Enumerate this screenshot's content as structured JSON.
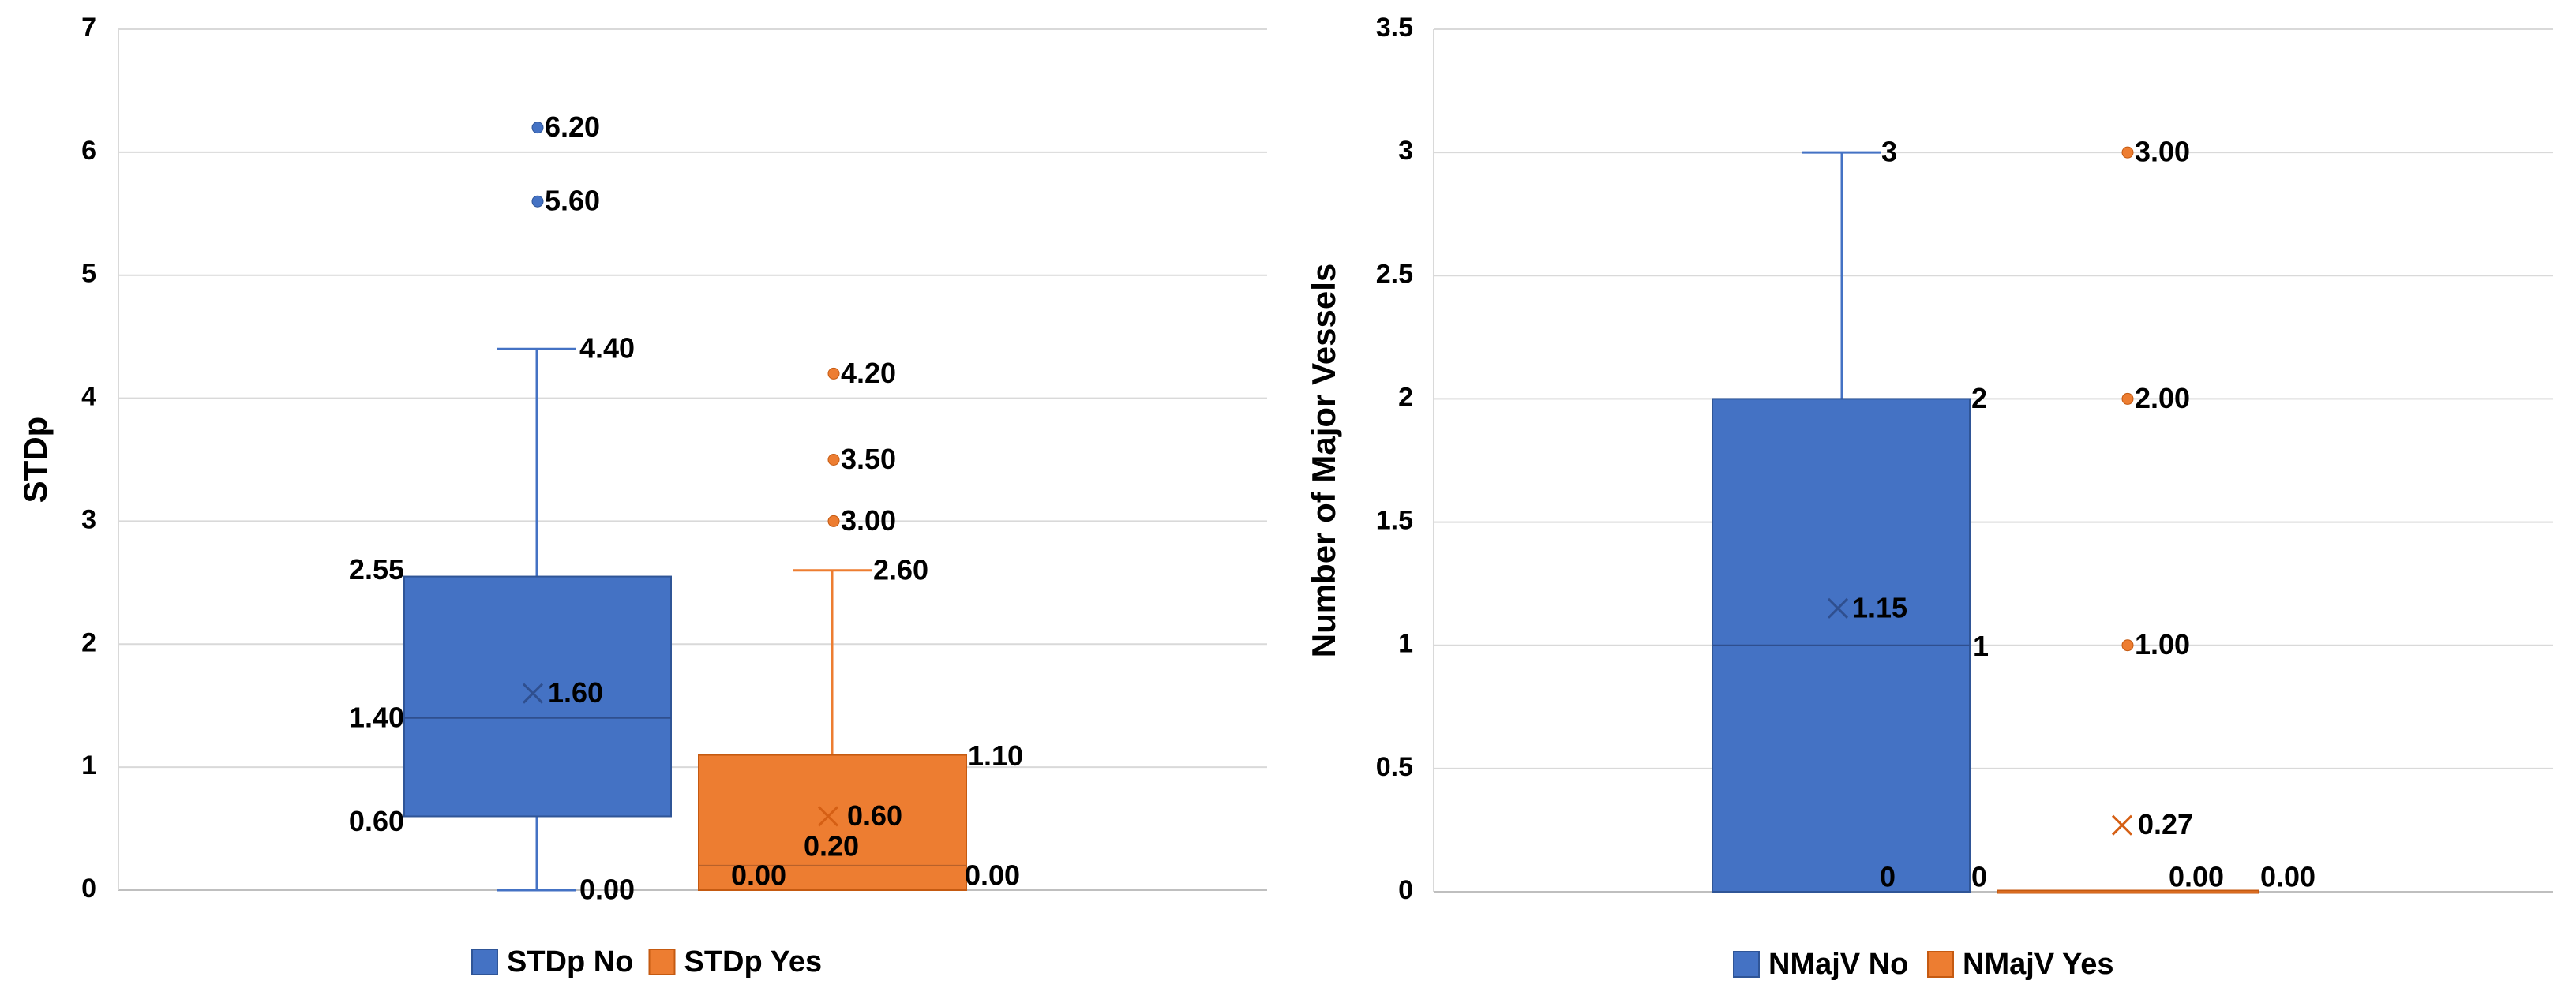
{
  "chart_data": [
    {
      "type": "box",
      "ylabel": "STDp",
      "ylim": [
        0,
        7
      ],
      "yticks": [
        "0",
        "1",
        "2",
        "3",
        "4",
        "5",
        "6",
        "7"
      ],
      "series": [
        {
          "name": "STDp No",
          "color": "#4472C4",
          "whisker_low": 0,
          "q1": 0.6,
          "median": 1.4,
          "q3": 2.55,
          "whisker_high": 4.4,
          "mean": 1.6,
          "outliers": [
            6.2,
            5.6
          ],
          "labels": {
            "whisker_low": "0.00",
            "q1": "0.60",
            "median": "1.40",
            "q3": "2.55",
            "whisker_high": "4.40",
            "mean": "1.60",
            "outliers": [
              "6.20",
              "5.60"
            ]
          }
        },
        {
          "name": "STDp Yes",
          "color": "#ED7D31",
          "whisker_low": 0,
          "q1": 0,
          "median": 0.2,
          "q3": 1.1,
          "whisker_high": 2.6,
          "mean": 0.6,
          "outliers": [
            4.2,
            3.5,
            3.0
          ],
          "labels": {
            "whisker_low": "0.00",
            "q1": "0.00",
            "median": "0.20",
            "q3": "1.10",
            "whisker_high": "2.60",
            "mean": "0.60",
            "outliers": [
              "4.20",
              "3.50",
              "3.00"
            ]
          }
        }
      ],
      "legend": [
        "STDp No",
        "STDp Yes"
      ]
    },
    {
      "type": "box",
      "ylabel": "Number of Major Vessels",
      "ylim": [
        0,
        3.5
      ],
      "yticks": [
        "0",
        "0.5",
        "1",
        "1.5",
        "2",
        "2.5",
        "3",
        "3.5"
      ],
      "series": [
        {
          "name": "NMajV No",
          "color": "#4472C4",
          "whisker_low": 0,
          "q1": 0,
          "median": 1,
          "q3": 2,
          "whisker_high": 3,
          "mean": 1.15,
          "outliers": [],
          "labels": {
            "whisker_low": "0",
            "q1": "0",
            "median": "1",
            "q3": "2",
            "whisker_high": "3",
            "mean": "1.15",
            "outliers": []
          }
        },
        {
          "name": "NMajV Yes",
          "color": "#ED7D31",
          "whisker_low": 0,
          "q1": 0,
          "median": 0,
          "q3": 0,
          "whisker_high": 0,
          "mean": 0.27,
          "outliers": [
            3.0,
            2.0,
            1.0
          ],
          "labels": {
            "q1": "0.00",
            "q3": "0.00",
            "mean": "0.27",
            "outliers": [
              "3.00",
              "2.00",
              "1.00"
            ]
          }
        }
      ],
      "legend": [
        "NMajV No",
        "NMajV Yes"
      ]
    }
  ]
}
